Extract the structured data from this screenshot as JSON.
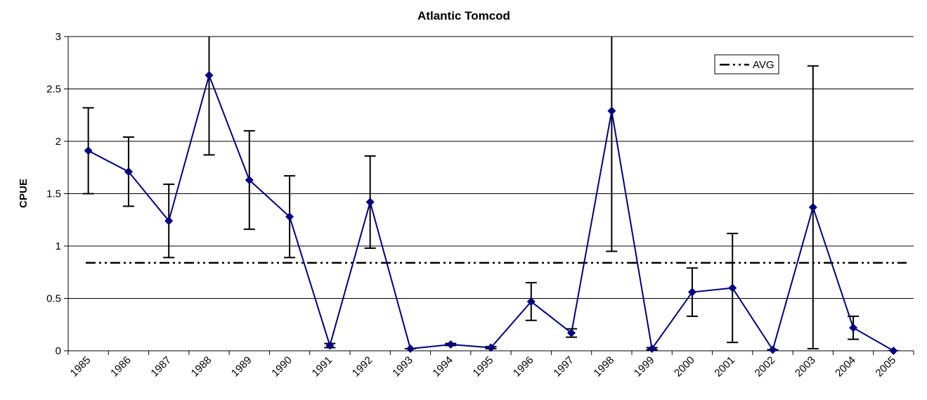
{
  "chart_data": {
    "type": "line",
    "title": "Atlantic Tomcod",
    "y_label": "CPUE",
    "categories": [
      "1985",
      "1986",
      "1987",
      "1988",
      "1989",
      "1990",
      "1991",
      "1992",
      "1993",
      "1994",
      "1995",
      "1996",
      "1997",
      "1998",
      "1999",
      "2000",
      "2001",
      "2002",
      "2003",
      "2004",
      "2005"
    ],
    "values": [
      1.91,
      1.71,
      1.24,
      2.63,
      1.63,
      1.28,
      0.05,
      1.42,
      0.02,
      0.06,
      0.03,
      0.47,
      0.17,
      2.29,
      0.02,
      0.56,
      0.6,
      0.01,
      1.37,
      0.22,
      0
    ],
    "errors": [
      0.41,
      0.33,
      0.35,
      0.76,
      0.47,
      0.39,
      0.02,
      0.44,
      0,
      0.01,
      0.01,
      0.18,
      0.04,
      1.34,
      0.01,
      0.23,
      0.52,
      0,
      1.35,
      0.11,
      0
    ],
    "color": "#000080",
    "average": {
      "name": "AVG",
      "value": 0.84
    },
    "ylim": [
      0,
      3
    ],
    "yticks": [
      0,
      0.5,
      1,
      1.5,
      2,
      2.5,
      3
    ],
    "grid": true,
    "legend": "upper right"
  }
}
